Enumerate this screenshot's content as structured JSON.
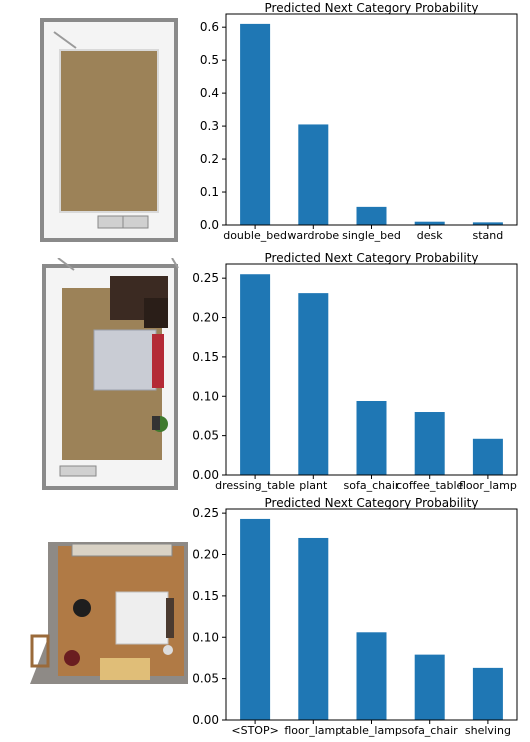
{
  "chart_data": [
    {
      "type": "bar",
      "title": "Predicted Next Category Probability",
      "categories": [
        "double_bed",
        "wardrobe",
        "single_bed",
        "desk",
        "stand"
      ],
      "values": [
        0.61,
        0.305,
        0.055,
        0.01,
        0.008
      ],
      "ylim": [
        0,
        0.64
      ],
      "yticks": [
        "0.0",
        "0.1",
        "0.2",
        "0.3",
        "0.4",
        "0.5",
        "0.6"
      ],
      "grid": false,
      "color": "#1f77b4"
    },
    {
      "type": "bar",
      "title": "Predicted Next Category Probability",
      "categories": [
        "dressing_table",
        "plant",
        "sofa_chair",
        "coffee_table",
        "floor_lamp"
      ],
      "values": [
        0.255,
        0.231,
        0.094,
        0.08,
        0.046
      ],
      "ylim": [
        0,
        0.268
      ],
      "yticks": [
        "0.00",
        "0.05",
        "0.10",
        "0.15",
        "0.20",
        "0.25"
      ],
      "grid": false,
      "color": "#1f77b4"
    },
    {
      "type": "bar",
      "title": "Predicted Next Category Probability",
      "categories": [
        "<STOP>",
        "floor_lamp",
        "table_lamp",
        "sofa_chair",
        "shelving"
      ],
      "values": [
        0.243,
        0.22,
        0.106,
        0.079,
        0.063
      ],
      "ylim": [
        0,
        0.255
      ],
      "yticks": [
        "0.00",
        "0.05",
        "0.10",
        "0.15",
        "0.20",
        "0.25"
      ],
      "grid": false,
      "color": "#1f77b4"
    }
  ]
}
